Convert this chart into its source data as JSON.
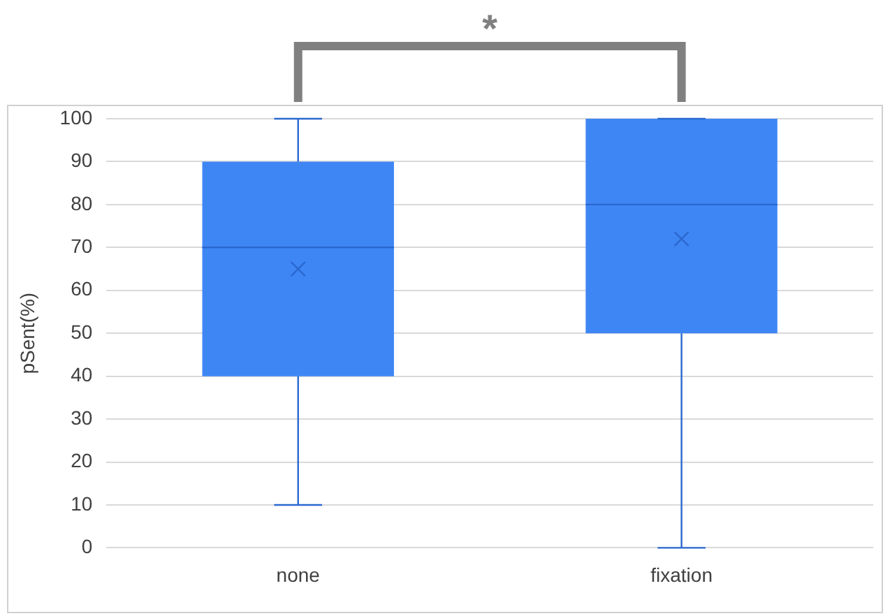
{
  "chart_data": {
    "type": "box",
    "ylabel": "pSent(%)",
    "categories": [
      "none",
      "fixation"
    ],
    "boxes": [
      {
        "low": 10,
        "q1": 40,
        "median": 70,
        "q3": 90,
        "high": 100,
        "mean": 65
      },
      {
        "low": 0,
        "q1": 50,
        "median": 80,
        "q3": 100,
        "high": 100,
        "mean": 72
      }
    ],
    "color": "#3f86f5",
    "ylim": [
      0,
      100
    ],
    "yticks": [
      0,
      10,
      20,
      30,
      40,
      50,
      60,
      70,
      80,
      90,
      100
    ],
    "grid": "y",
    "legend": false,
    "annotations": [
      "*"
    ]
  }
}
